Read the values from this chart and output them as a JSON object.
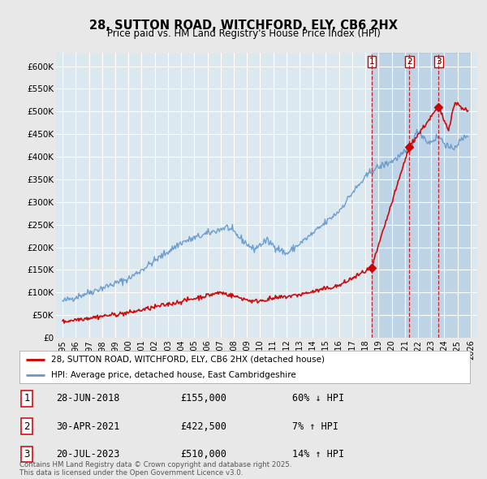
{
  "title": "28, SUTTON ROAD, WITCHFORD, ELY, CB6 2HX",
  "subtitle": "Price paid vs. HM Land Registry's House Price Index (HPI)",
  "background_color": "#e8e8e8",
  "plot_bg_color": "#dce8f0",
  "grid_color": "#ffffff",
  "legend_line1": "28, SUTTON ROAD, WITCHFORD, ELY, CB6 2HX (detached house)",
  "legend_line2": "HPI: Average price, detached house, East Cambridgeshire",
  "sale1_date": "28-JUN-2018",
  "sale1_price": "£155,000",
  "sale1_hpi": "60% ↓ HPI",
  "sale1_year": 2018.49,
  "sale1_value": 155000,
  "sale2_date": "30-APR-2021",
  "sale2_price": "£422,500",
  "sale2_hpi": "7% ↑ HPI",
  "sale2_year": 2021.33,
  "sale2_value": 422500,
  "sale3_date": "20-JUL-2023",
  "sale3_price": "£510,000",
  "sale3_hpi": "14% ↑ HPI",
  "sale3_year": 2023.55,
  "sale3_value": 510000,
  "red_color": "#cc0000",
  "blue_color": "#6699cc",
  "shade_color": "#ddeeff",
  "footer_text": "Contains HM Land Registry data © Crown copyright and database right 2025.\nThis data is licensed under the Open Government Licence v3.0."
}
